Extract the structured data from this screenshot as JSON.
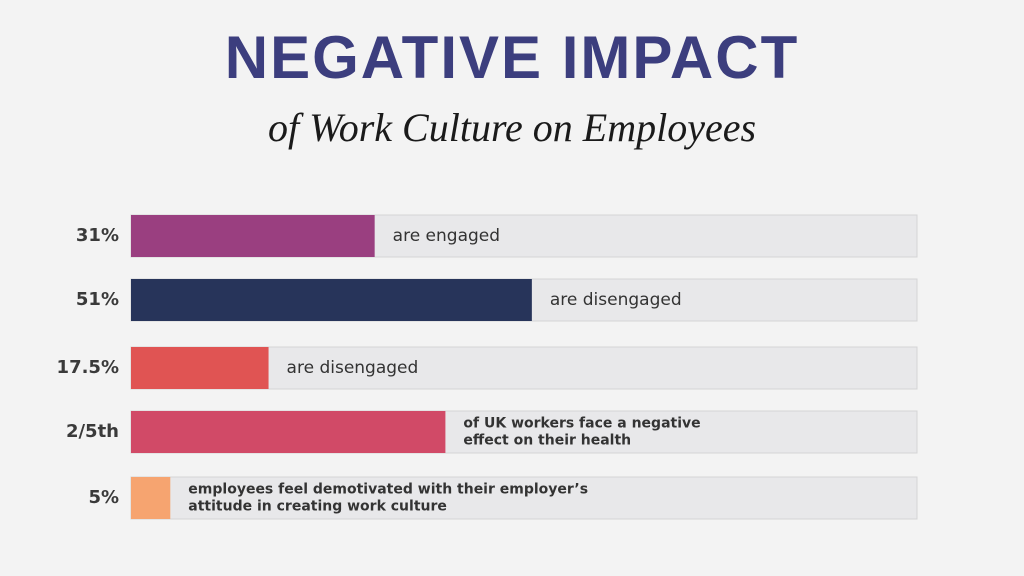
{
  "chart_data": {
    "type": "bar",
    "orientation": "horizontal",
    "title": "NEGATIVE IMPACT",
    "subtitle": "of Work Culture on Employees",
    "values": [
      31,
      51,
      17.5,
      40,
      5
    ],
    "value_labels": [
      "31%",
      "51%",
      "17.5%",
      "2/5th",
      "5%"
    ],
    "descriptions": [
      [
        "are engaged"
      ],
      [
        "are disengaged"
      ],
      [
        "are disengaged"
      ],
      [
        "of UK workers face a negative",
        "effect on their health"
      ],
      [
        "employees feel demotivated with their employer’s",
        "attitude in creating work culture"
      ]
    ],
    "colors": [
      "#9a3f80",
      "#27345a",
      "#e05453",
      "#d14a67",
      "#f6a470"
    ],
    "track_color": "#e8e8ea",
    "xlim": [
      0,
      100
    ]
  }
}
